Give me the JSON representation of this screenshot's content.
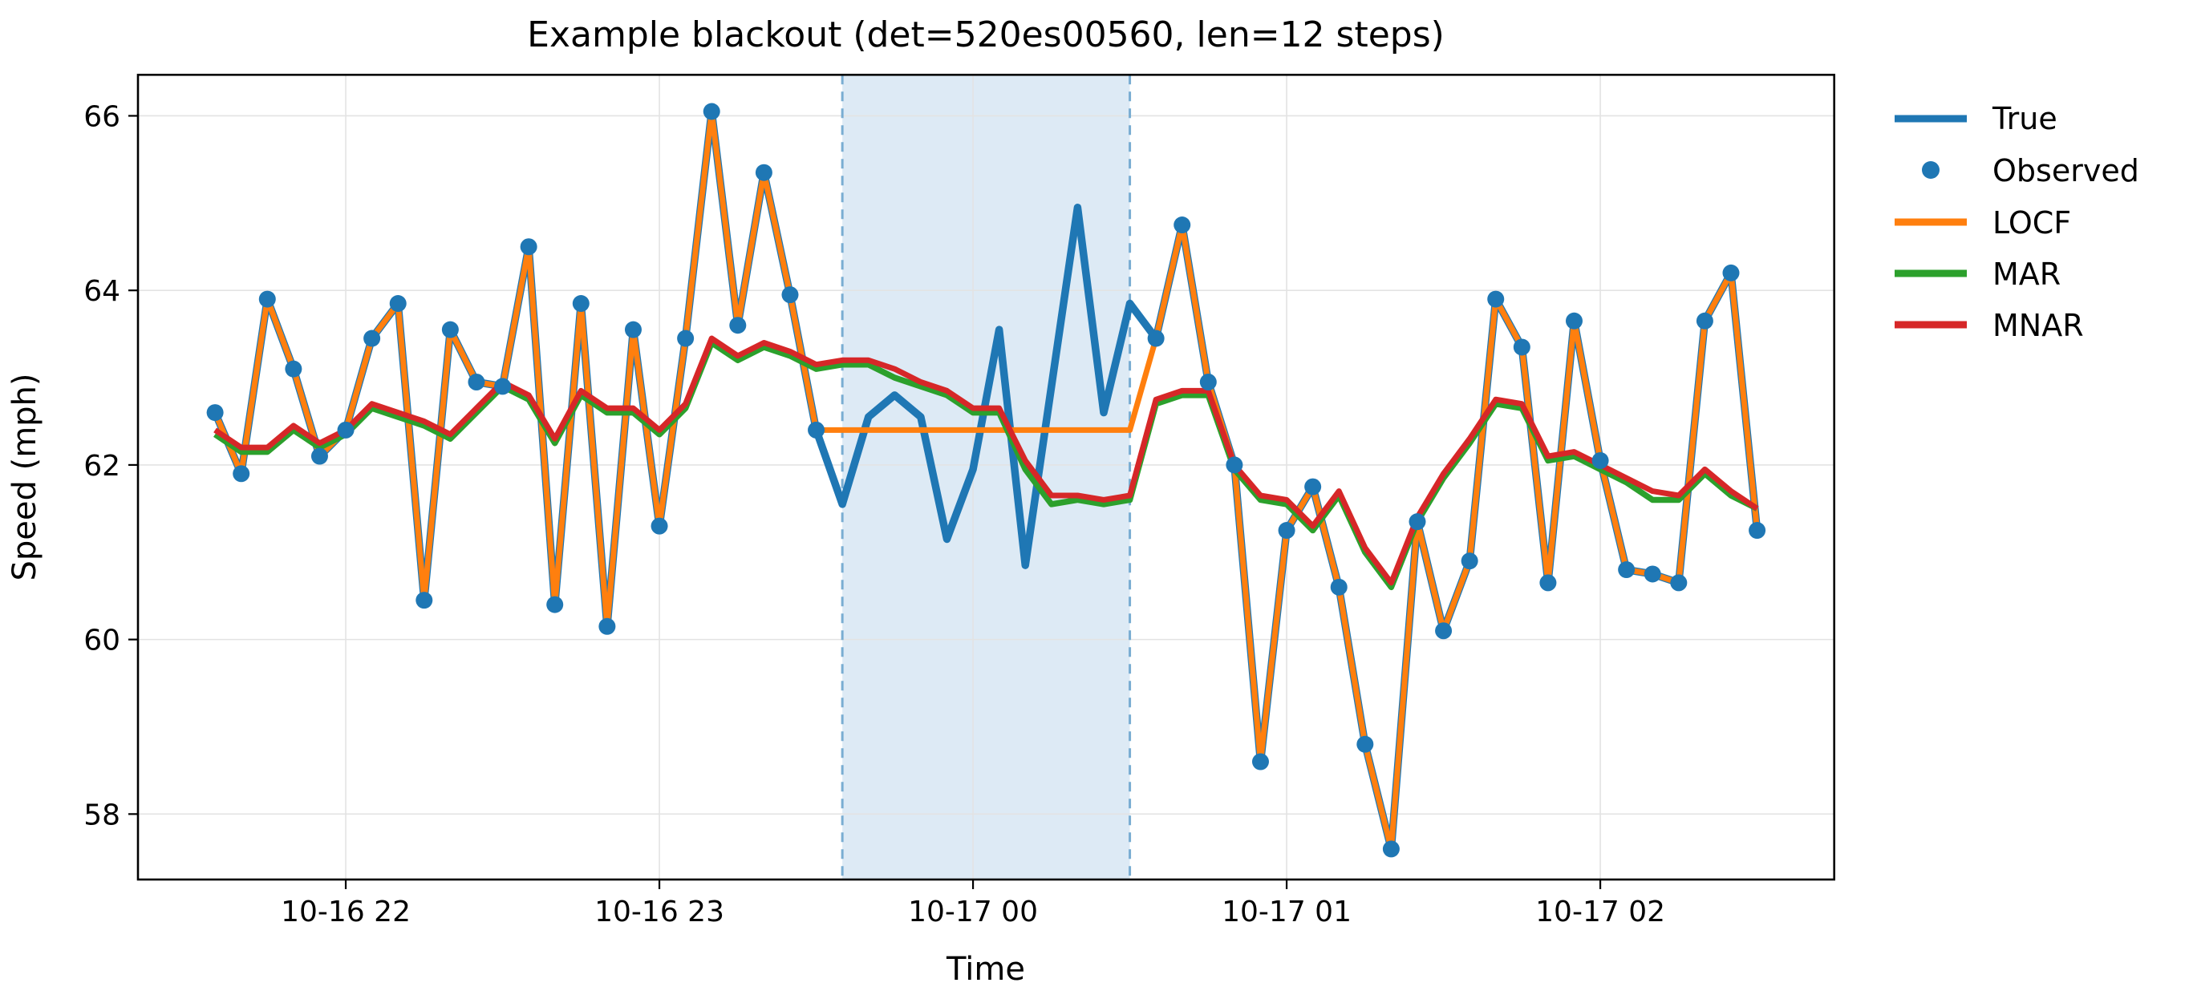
{
  "figure": {
    "title": "Example blackout (det=520es00560, len=12 steps)",
    "xlabel": "Time",
    "ylabel": "Speed (mph)"
  },
  "legend": {
    "items": [
      {
        "label": "True",
        "color": "#1f77b4",
        "swatch": "line"
      },
      {
        "label": "Observed",
        "color": "#1f77b4",
        "swatch": "dot"
      },
      {
        "label": "LOCF",
        "color": "#ff7f0e",
        "swatch": "line"
      },
      {
        "label": "MAR",
        "color": "#2ca02c",
        "swatch": "line"
      },
      {
        "label": "MNAR",
        "color": "#d62728",
        "swatch": "line"
      }
    ]
  },
  "colors": {
    "true": "#1f77b4",
    "observed": "#1f77b4",
    "locf": "#ff7f0e",
    "mar": "#2ca02c",
    "mnar": "#d62728",
    "blackout_fill": "#ddeaf5",
    "blackout_edge": "#79add2",
    "grid": "#e3e3e3",
    "axes_border": "#000000"
  },
  "chart_data": {
    "type": "line",
    "title": "Example blackout (det=520es00560, len=12 steps)",
    "xlabel": "Time",
    "ylabel": "Speed (mph)",
    "grid": true,
    "legend_position": "outside-right-top",
    "x_times": [
      "21:35",
      "21:40",
      "21:45",
      "21:50",
      "21:55",
      "22:00",
      "22:05",
      "22:10",
      "22:15",
      "22:20",
      "22:25",
      "22:30",
      "22:35",
      "22:40",
      "22:45",
      "22:50",
      "22:55",
      "23:00",
      "23:05",
      "23:10",
      "23:15",
      "23:20",
      "23:25",
      "23:30",
      "23:35",
      "23:40",
      "23:45",
      "23:50",
      "23:55",
      "00:00",
      "00:05",
      "00:10",
      "00:15",
      "00:20",
      "00:25",
      "00:30",
      "00:35",
      "00:40",
      "00:45",
      "00:50",
      "00:55",
      "01:00",
      "01:05",
      "01:10",
      "01:15",
      "01:20",
      "01:25",
      "01:30",
      "01:35",
      "01:40",
      "01:45",
      "01:50",
      "01:55",
      "02:00",
      "02:05",
      "02:10",
      "02:15",
      "02:20",
      "02:25",
      "02:30"
    ],
    "x_minutes": [
      0,
      5,
      10,
      15,
      20,
      25,
      30,
      35,
      40,
      45,
      50,
      55,
      60,
      65,
      70,
      75,
      80,
      85,
      90,
      95,
      100,
      105,
      110,
      115,
      120,
      125,
      130,
      135,
      140,
      145,
      150,
      155,
      160,
      165,
      170,
      175,
      180,
      185,
      190,
      195,
      200,
      205,
      210,
      215,
      220,
      225,
      230,
      235,
      240,
      245,
      250,
      255,
      260,
      265,
      270,
      275,
      280,
      285,
      290,
      295
    ],
    "series": [
      {
        "name": "True",
        "type": "line",
        "color": "#1f77b4",
        "linewidth": 9.5,
        "values": [
          62.6,
          61.9,
          63.9,
          63.1,
          62.1,
          62.4,
          63.45,
          63.85,
          60.45,
          63.55,
          62.95,
          62.9,
          64.5,
          60.4,
          63.85,
          60.15,
          63.55,
          61.3,
          63.45,
          66.05,
          63.6,
          65.35,
          63.95,
          62.4,
          61.55,
          62.55,
          62.8,
          62.55,
          61.15,
          61.95,
          63.55,
          60.85,
          62.9,
          64.95,
          62.6,
          63.85,
          63.45,
          64.75,
          62.95,
          62.0,
          58.6,
          61.25,
          61.75,
          60.6,
          58.8,
          57.6,
          61.35,
          60.1,
          60.9,
          63.9,
          63.35,
          60.65,
          63.65,
          62.05,
          60.8,
          60.75,
          60.65,
          63.65,
          64.2,
          61.25
        ]
      },
      {
        "name": "LOCF",
        "type": "line",
        "color": "#ff7f0e",
        "linewidth": 7,
        "values": [
          62.6,
          61.9,
          63.9,
          63.1,
          62.1,
          62.4,
          63.45,
          63.85,
          60.45,
          63.55,
          62.95,
          62.9,
          64.5,
          60.4,
          63.85,
          60.15,
          63.55,
          61.3,
          63.45,
          66.05,
          63.6,
          65.35,
          63.95,
          62.4,
          62.4,
          62.4,
          62.4,
          62.4,
          62.4,
          62.4,
          62.4,
          62.4,
          62.4,
          62.4,
          62.4,
          62.4,
          63.45,
          64.75,
          62.95,
          62.0,
          58.6,
          61.25,
          61.75,
          60.6,
          58.8,
          57.6,
          61.35,
          60.1,
          60.9,
          63.9,
          63.35,
          60.65,
          63.65,
          62.05,
          60.8,
          60.75,
          60.65,
          63.65,
          64.2,
          61.25
        ]
      },
      {
        "name": "MAR",
        "type": "line",
        "color": "#2ca02c",
        "linewidth": 7.5,
        "values": [
          62.35,
          62.15,
          62.15,
          62.4,
          62.2,
          62.35,
          62.65,
          62.55,
          62.45,
          62.3,
          62.6,
          62.9,
          62.75,
          62.25,
          62.8,
          62.6,
          62.6,
          62.35,
          62.65,
          63.4,
          63.2,
          63.35,
          63.25,
          63.1,
          63.15,
          63.15,
          63.0,
          62.9,
          62.8,
          62.6,
          62.6,
          61.95,
          61.55,
          61.6,
          61.55,
          61.6,
          62.7,
          62.8,
          62.8,
          61.95,
          61.6,
          61.55,
          61.25,
          61.65,
          61.0,
          60.6,
          61.35,
          61.85,
          62.25,
          62.7,
          62.65,
          62.05,
          62.1,
          61.95,
          61.8,
          61.6,
          61.6,
          61.9,
          61.65,
          61.5
        ]
      },
      {
        "name": "MNAR",
        "type": "line",
        "color": "#d62728",
        "linewidth": 7,
        "values": [
          62.4,
          62.2,
          62.2,
          62.45,
          62.25,
          62.4,
          62.7,
          62.6,
          62.5,
          62.35,
          62.65,
          62.95,
          62.8,
          62.3,
          62.85,
          62.65,
          62.65,
          62.4,
          62.7,
          63.45,
          63.25,
          63.4,
          63.3,
          63.15,
          63.2,
          63.2,
          63.1,
          62.95,
          62.85,
          62.65,
          62.65,
          62.05,
          61.65,
          61.65,
          61.6,
          61.65,
          62.75,
          62.85,
          62.85,
          62.0,
          61.65,
          61.6,
          61.3,
          61.7,
          61.05,
          60.65,
          61.4,
          61.9,
          62.3,
          62.75,
          62.7,
          62.1,
          62.15,
          62.0,
          61.85,
          61.7,
          61.65,
          61.95,
          61.7,
          61.5
        ]
      },
      {
        "name": "Observed",
        "type": "scatter",
        "color": "#1f77b4",
        "radius": 10.5,
        "values": [
          62.6,
          61.9,
          63.9,
          63.1,
          62.1,
          62.4,
          63.45,
          63.85,
          60.45,
          63.55,
          62.95,
          62.9,
          64.5,
          60.4,
          63.85,
          60.15,
          63.55,
          61.3,
          63.45,
          66.05,
          63.6,
          65.35,
          63.95,
          62.4,
          null,
          null,
          null,
          null,
          null,
          null,
          null,
          null,
          null,
          null,
          null,
          null,
          63.45,
          64.75,
          62.95,
          62.0,
          58.6,
          61.25,
          61.75,
          60.6,
          58.8,
          57.6,
          61.35,
          60.1,
          60.9,
          63.9,
          63.35,
          60.65,
          63.65,
          62.05,
          60.8,
          60.75,
          60.65,
          63.65,
          64.2,
          61.25
        ]
      }
    ],
    "blackout": {
      "start_time": "23:35",
      "end_time": "00:30",
      "t0": 120,
      "t1": 175,
      "len_steps": 12,
      "det": "520es00560"
    },
    "xticks": [
      {
        "t": 25,
        "label": "10-16 22"
      },
      {
        "t": 85,
        "label": "10-16 23"
      },
      {
        "t": 145,
        "label": "10-17 00"
      },
      {
        "t": 205,
        "label": "10-17 01"
      },
      {
        "t": 265,
        "label": "10-17 02"
      }
    ],
    "yticks": [
      58,
      60,
      62,
      64,
      66
    ],
    "xlim": [
      -14.75,
      309.75
    ],
    "ylim": [
      57.25,
      66.47
    ]
  }
}
